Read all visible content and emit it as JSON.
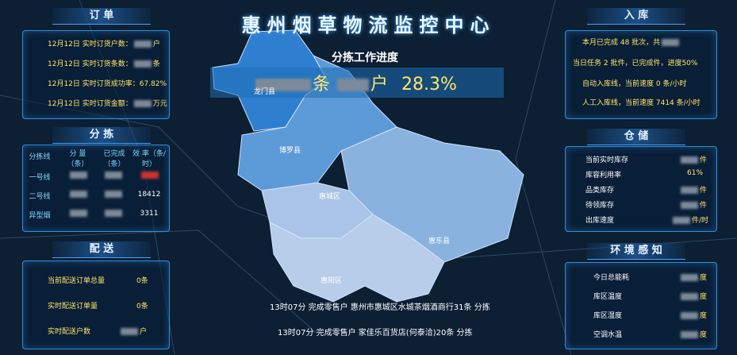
{
  "header": {
    "title": "惠州烟草物流监控中心"
  },
  "orders": {
    "title": "订 单",
    "rows": [
      {
        "label": "12月12日 实时订货户数：",
        "unit": "户"
      },
      {
        "label": "12月12日 实时订货条数：",
        "unit": "条"
      },
      {
        "label": "12月12日 实时订货成功率：67.82%"
      },
      {
        "label": "12月12日 实时订货金额：",
        "unit": "万元"
      }
    ]
  },
  "sorting": {
    "title": "分 拣",
    "columns": [
      "分拣线",
      "分 量（条）",
      "已完成（条）",
      "效 率（条/时）"
    ],
    "rows": [
      [
        "一号线"
      ],
      [
        "二号线",
        "18412"
      ],
      [
        "异型烟",
        "3311"
      ]
    ]
  },
  "delivery": {
    "title": "配 送",
    "rows": [
      {
        "label": "当前配送订单总量",
        "value": "0条"
      },
      {
        "label": "实时配送订单量",
        "value": "0条"
      },
      {
        "label": "实时配送户数",
        "unit": "户"
      }
    ]
  },
  "center": {
    "title": "分拣工作进度",
    "unit1": "条",
    "unit2": "户",
    "percent": "28.3%",
    "regions": [
      "龙门县",
      "博罗县",
      "惠城区",
      "惠东县",
      "惠阳区"
    ],
    "messages": [
      "13时07分 完成零售户 惠州市惠城区水城茶烟酒商行31条 分拣",
      "13时07分 完成零售户 家佳乐百货店(何泰洽)20条 分拣"
    ]
  },
  "inbound": {
    "title": "入 库",
    "rows": [
      "本月已完成 48 批次，共",
      "当日任务 2 批件，已完成件，进度50%",
      "自动入库线，当前速度 0 条/小时",
      "人工入库线，当前速度 7414 条/小时"
    ]
  },
  "storage": {
    "title": "仓 储",
    "rows": [
      {
        "label": "当前实时库存",
        "unit": "件"
      },
      {
        "label": "库容利用率",
        "value": "61%"
      },
      {
        "label": "品类库存",
        "unit": "件"
      },
      {
        "label": "待领库存",
        "unit": "件"
      },
      {
        "label": "出库速度",
        "unit": "件/时"
      }
    ]
  },
  "environment": {
    "title": "环 境 感 知",
    "rows": [
      {
        "label": "今日总能耗",
        "unit": "度"
      },
      {
        "label": "库区温度",
        "unit": "度"
      },
      {
        "label": "库区湿度",
        "unit": "度"
      },
      {
        "label": "空调水温",
        "unit": "度"
      }
    ]
  }
}
